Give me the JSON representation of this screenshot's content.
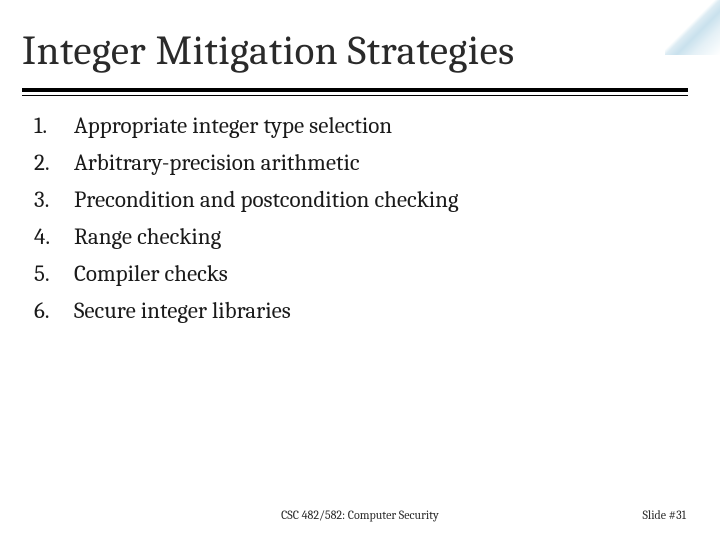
{
  "slide": {
    "title": "Integer Mitigation Strategies",
    "title_color": "#2a2a2a",
    "title_fontsize": 41,
    "underline_color": "#000000",
    "background_color": "#ffffff",
    "accent_color": "#78b4d2",
    "list": {
      "items": [
        {
          "number": "1.",
          "text": "Appropriate integer type selection"
        },
        {
          "number": "2.",
          "text": "Arbitrary-precision arithmetic"
        },
        {
          "number": "3.",
          "text": "Precondition and postcondition checking"
        },
        {
          "number": "4.",
          "text": "Range checking"
        },
        {
          "number": "5.",
          "text": "Compiler checks"
        },
        {
          "number": "6.",
          "text": "Secure integer libraries"
        }
      ],
      "fontsize": 23,
      "text_color": "#1a1a1a"
    },
    "footer": {
      "center": "CSC 482/582: Computer Security",
      "right": "Slide #31",
      "fontsize": 12,
      "color": "#2a2a2a"
    }
  }
}
